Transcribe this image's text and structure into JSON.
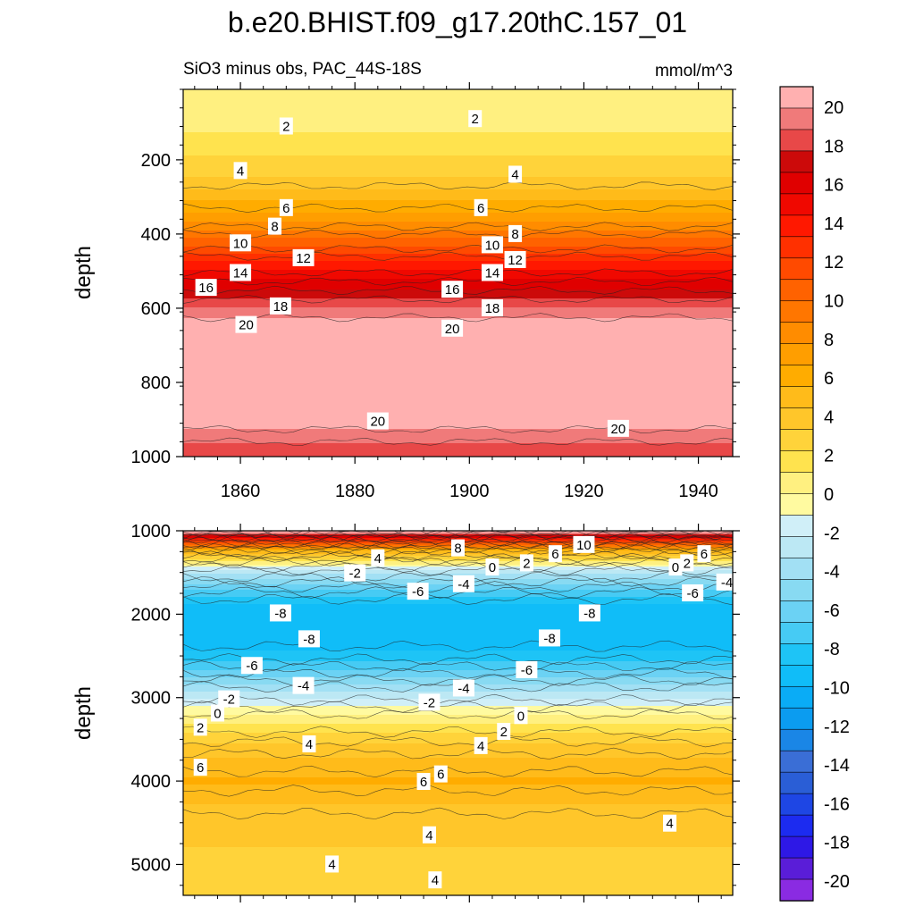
{
  "figure": {
    "title": "b.e20.BHIST.f09_g17.20thC.157_01",
    "subtitle_left": "SiO3 minus obs, PAC_44S-18S",
    "subtitle_right": "mmol/m^3"
  },
  "chart_data": [
    {
      "type": "contour",
      "panel": "upper",
      "xlabel": "",
      "ylabel": "depth",
      "xlim": [
        1850,
        1946
      ],
      "ylim": [
        1000,
        10
      ],
      "xticks": [
        1860,
        1880,
        1900,
        1920,
        1940
      ],
      "yticks": [
        200,
        400,
        600,
        800,
        1000
      ],
      "depths": [
        10,
        60,
        120,
        180,
        240,
        300,
        360,
        420,
        480,
        540,
        600,
        650,
        700,
        800,
        900,
        940,
        980,
        1000
      ],
      "values": [
        1.2,
        1.5,
        2.0,
        3.0,
        4.0,
        6.0,
        8.0,
        11.0,
        14.0,
        16.5,
        19.0,
        21.0,
        21.5,
        21.5,
        21.0,
        19.5,
        18.5,
        18.0
      ],
      "contour_labels": [
        {
          "text": "2",
          "x": 1868,
          "d": 110
        },
        {
          "text": "2",
          "x": 1901,
          "d": 90
        },
        {
          "text": "4",
          "x": 1860,
          "d": 230
        },
        {
          "text": "4",
          "x": 1908,
          "d": 240
        },
        {
          "text": "6",
          "x": 1868,
          "d": 330
        },
        {
          "text": "6",
          "x": 1902,
          "d": 330
        },
        {
          "text": "8",
          "x": 1866,
          "d": 380
        },
        {
          "text": "8",
          "x": 1908,
          "d": 400
        },
        {
          "text": "10",
          "x": 1860,
          "d": 425
        },
        {
          "text": "10",
          "x": 1904,
          "d": 430
        },
        {
          "text": "12",
          "x": 1871,
          "d": 465
        },
        {
          "text": "12",
          "x": 1908,
          "d": 470
        },
        {
          "text": "14",
          "x": 1860,
          "d": 505
        },
        {
          "text": "14",
          "x": 1904,
          "d": 505
        },
        {
          "text": "16",
          "x": 1854,
          "d": 545
        },
        {
          "text": "16",
          "x": 1897,
          "d": 550
        },
        {
          "text": "18",
          "x": 1867,
          "d": 595
        },
        {
          "text": "18",
          "x": 1904,
          "d": 600
        },
        {
          "text": "20",
          "x": 1861,
          "d": 645
        },
        {
          "text": "20",
          "x": 1897,
          "d": 655
        },
        {
          "text": "20",
          "x": 1884,
          "d": 905
        },
        {
          "text": "20",
          "x": 1926,
          "d": 925
        }
      ]
    },
    {
      "type": "contour",
      "panel": "lower",
      "xlabel": "",
      "ylabel": "depth",
      "xlim": [
        1850,
        1946
      ],
      "ylim": [
        5370,
        1000
      ],
      "xticks": [
        1860,
        1880,
        1900,
        1920,
        1940
      ],
      "yticks": [
        1000,
        2000,
        3000,
        4000,
        5000
      ],
      "depths": [
        1000,
        1100,
        1250,
        1400,
        1500,
        1700,
        1900,
        2200,
        2500,
        2750,
        2950,
        3150,
        3300,
        3500,
        3700,
        4000,
        4300,
        4700,
        5000,
        5370
      ],
      "values": [
        22.0,
        14.0,
        6.0,
        1.0,
        -2.0,
        -5.5,
        -8.0,
        -8.8,
        -7.5,
        -4.5,
        -2.0,
        0.5,
        2.0,
        3.8,
        5.2,
        6.5,
        5.2,
        4.3,
        4.0,
        3.9
      ],
      "contour_labels": [
        {
          "text": "4",
          "x": 1884,
          "d": 1330
        },
        {
          "text": "8",
          "x": 1898,
          "d": 1210
        },
        {
          "text": "10",
          "x": 1920,
          "d": 1170
        },
        {
          "text": "6",
          "x": 1915,
          "d": 1280
        },
        {
          "text": "2",
          "x": 1910,
          "d": 1390
        },
        {
          "text": "0",
          "x": 1904,
          "d": 1440
        },
        {
          "text": "-2",
          "x": 1880,
          "d": 1510
        },
        {
          "text": "-4",
          "x": 1899,
          "d": 1640
        },
        {
          "text": "-6",
          "x": 1891,
          "d": 1730
        },
        {
          "text": "0",
          "x": 1936,
          "d": 1440
        },
        {
          "text": "2",
          "x": 1938,
          "d": 1390
        },
        {
          "text": "6",
          "x": 1941,
          "d": 1280
        },
        {
          "text": "-4",
          "x": 1945,
          "d": 1620
        },
        {
          "text": "-6",
          "x": 1939,
          "d": 1750
        },
        {
          "text": "-8",
          "x": 1867,
          "d": 1990
        },
        {
          "text": "-8",
          "x": 1921,
          "d": 1990
        },
        {
          "text": "-8",
          "x": 1872,
          "d": 2300
        },
        {
          "text": "-8",
          "x": 1914,
          "d": 2290
        },
        {
          "text": "-6",
          "x": 1862,
          "d": 2620
        },
        {
          "text": "-6",
          "x": 1910,
          "d": 2670
        },
        {
          "text": "-4",
          "x": 1871,
          "d": 2860
        },
        {
          "text": "-4",
          "x": 1899,
          "d": 2890
        },
        {
          "text": "-2",
          "x": 1858,
          "d": 3020
        },
        {
          "text": "-2",
          "x": 1893,
          "d": 3060
        },
        {
          "text": "0",
          "x": 1856,
          "d": 3190
        },
        {
          "text": "0",
          "x": 1909,
          "d": 3220
        },
        {
          "text": "2",
          "x": 1853,
          "d": 3360
        },
        {
          "text": "2",
          "x": 1906,
          "d": 3410
        },
        {
          "text": "4",
          "x": 1872,
          "d": 3560
        },
        {
          "text": "4",
          "x": 1902,
          "d": 3580
        },
        {
          "text": "6",
          "x": 1853,
          "d": 3840
        },
        {
          "text": "6",
          "x": 1895,
          "d": 3920
        },
        {
          "text": "6",
          "x": 1892,
          "d": 4010
        },
        {
          "text": "4",
          "x": 1935,
          "d": 4510
        },
        {
          "text": "4",
          "x": 1893,
          "d": 4650
        },
        {
          "text": "4",
          "x": 1876,
          "d": 5000
        },
        {
          "text": "4",
          "x": 1894,
          "d": 5190
        }
      ]
    }
  ],
  "colorbar": {
    "levels": [
      -20,
      -18,
      -16,
      -14,
      -12,
      -10,
      -8,
      -6,
      -4,
      -2,
      0,
      2,
      4,
      6,
      8,
      10,
      12,
      14,
      16,
      18,
      20
    ],
    "labels": [
      "20",
      "18",
      "16",
      "14",
      "12",
      "10",
      "8",
      "6",
      "4",
      "2",
      "0",
      "-2",
      "-4",
      "-6",
      "-8",
      "-10",
      "-12",
      "-14",
      "-16",
      "-18",
      "-20"
    ],
    "colors": [
      "#8a2be2",
      "#5a1dd8",
      "#2e18e6",
      "#1c2bf0",
      "#1e46e4",
      "#2a5ed6",
      "#3a6ed6",
      "#1a86e6",
      "#0b9cf0",
      "#0aacf6",
      "#10bdf8",
      "#1ec4f6",
      "#46cbf4",
      "#6bd2f4",
      "#88daf2",
      "#a2e0f4",
      "#bce8f4",
      "#d0eff8",
      "#fffaa0",
      "#fff080",
      "#ffe34e",
      "#ffd33a",
      "#ffc62a",
      "#ffbb1a",
      "#ffac00",
      "#ff9e00",
      "#ff8c00",
      "#ff7600",
      "#ff6200",
      "#ff4a00",
      "#ff3000",
      "#ff1800",
      "#f00800",
      "#e00000",
      "#cc0a0a",
      "#e84848",
      "#f07a7a",
      "#ffb0b0"
    ]
  }
}
